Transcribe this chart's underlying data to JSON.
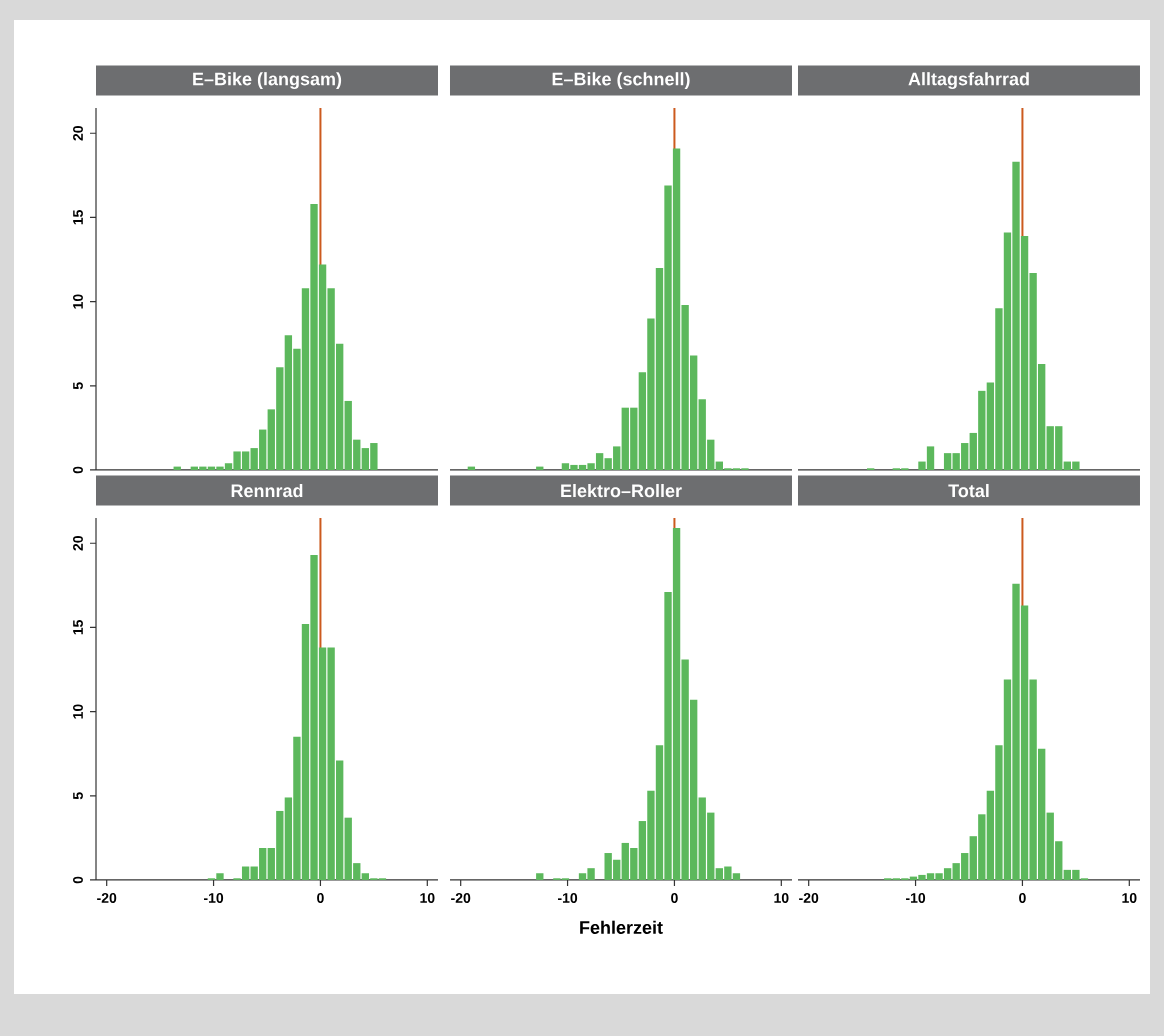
{
  "chart_data": [
    {
      "type": "histogram",
      "title": "E–Bike (langsam)",
      "color": "#5cb85c",
      "xlim": [
        -21,
        11
      ],
      "ylim": [
        0,
        21.5
      ],
      "xticks": [
        -20,
        -10,
        0,
        10
      ],
      "yticks": [
        0,
        5,
        10,
        15,
        20
      ],
      "tick_labels": "y",
      "ref_lines": [
        {
          "axis": "x",
          "value": 0,
          "color": "#cc5a1e"
        }
      ],
      "bins": [
        -13.8,
        -13,
        -12.2,
        -11.4,
        -10.6,
        -9.8,
        -9,
        -8.2,
        -7.4,
        -6.6,
        -5.8,
        -5,
        -4.2,
        -3.4,
        -2.6,
        -1.8,
        -1,
        -0.2,
        0.6,
        1.4,
        2.2,
        3,
        3.8,
        4.6,
        5.4
      ],
      "values": [
        0.2,
        0,
        0.2,
        0.2,
        0.2,
        0.2,
        0.4,
        1.1,
        1.1,
        1.3,
        2.4,
        3.6,
        6.1,
        8.0,
        7.2,
        10.8,
        15.8,
        12.2,
        10.8,
        7.5,
        4.1,
        1.8,
        1.3,
        1.6
      ]
    },
    {
      "type": "histogram",
      "title": "E–Bike (schnell)",
      "color": "#5cb85c",
      "xlim": [
        -21,
        11
      ],
      "ylim": [
        0,
        21.5
      ],
      "xticks": [
        -20,
        -10,
        0,
        10
      ],
      "yticks": [
        0,
        5,
        10,
        15,
        20
      ],
      "tick_labels": false,
      "ref_lines": [
        {
          "axis": "x",
          "value": 0,
          "color": "#cc5a1e"
        }
      ],
      "bins": [
        -19.4,
        -18.6,
        -17.8,
        -17,
        -16.2,
        -15.4,
        -14.6,
        -13.8,
        -13,
        -12.2,
        -11.4,
        -10.6,
        -9.8,
        -9,
        -8.2,
        -7.4,
        -6.6,
        -5.8,
        -5,
        -4.2,
        -3.4,
        -2.6,
        -1.8,
        -1,
        -0.2,
        0.6,
        1.4,
        2.2,
        3,
        3.8,
        4.6,
        5.4,
        6.2,
        7
      ],
      "values": [
        0.2,
        0,
        0,
        0,
        0,
        0,
        0,
        0,
        0.2,
        0,
        0,
        0.4,
        0.3,
        0.3,
        0.4,
        1.0,
        0.7,
        1.4,
        3.7,
        3.7,
        5.8,
        9.0,
        12.0,
        16.9,
        19.1,
        9.8,
        6.8,
        4.2,
        1.8,
        0.5,
        0.1,
        0.1,
        0.1
      ]
    },
    {
      "type": "histogram",
      "title": "Alltagsfahrrad",
      "color": "#5cb85c",
      "xlim": [
        -21,
        11
      ],
      "ylim": [
        0,
        21.5
      ],
      "xticks": [
        -20,
        -10,
        0,
        10
      ],
      "yticks": [
        0,
        5,
        10,
        15,
        20
      ],
      "tick_labels": false,
      "ref_lines": [
        {
          "axis": "x",
          "value": 0,
          "color": "#cc5a1e"
        }
      ],
      "bins": [
        -14.6,
        -13.8,
        -13,
        -12.2,
        -11.4,
        -10.6,
        -9.8,
        -9,
        -8.2,
        -7.4,
        -6.6,
        -5.8,
        -5,
        -4.2,
        -3.4,
        -2.6,
        -1.8,
        -1,
        -0.2,
        0.6,
        1.4,
        2.2,
        3,
        3.8,
        4.6,
        5.4
      ],
      "values": [
        0.1,
        0,
        0,
        0.1,
        0.1,
        0,
        0.5,
        1.4,
        0,
        1.0,
        1.0,
        1.6,
        2.2,
        4.7,
        5.2,
        9.6,
        14.1,
        18.3,
        13.9,
        11.7,
        6.3,
        2.6,
        2.6,
        0.5,
        0.5
      ]
    },
    {
      "type": "histogram",
      "title": "Rennrad",
      "color": "#5cb85c",
      "xlim": [
        -21,
        11
      ],
      "ylim": [
        0,
        21.5
      ],
      "xticks": [
        -20,
        -10,
        0,
        10
      ],
      "yticks": [
        0,
        5,
        10,
        15,
        20
      ],
      "ref_lines": [
        {
          "axis": "x",
          "value": 0,
          "color": "#cc5a1e"
        }
      ],
      "bins": [
        -10.6,
        -9.8,
        -9,
        -8.2,
        -7.4,
        -6.6,
        -5.8,
        -5,
        -4.2,
        -3.4,
        -2.6,
        -1.8,
        -1,
        -0.2,
        0.6,
        1.4,
        2.2,
        3,
        3.8,
        4.6,
        5.4,
        6.2
      ],
      "values": [
        0.1,
        0.4,
        0,
        0.1,
        0.8,
        0.8,
        1.9,
        1.9,
        4.1,
        4.9,
        8.5,
        15.2,
        19.3,
        13.8,
        13.8,
        7.1,
        3.7,
        1.0,
        0.4,
        0.1,
        0.1
      ]
    },
    {
      "type": "histogram",
      "title": "Elektro–Roller",
      "xlabel": "Fehlerzeit",
      "color": "#5cb85c",
      "xlim": [
        -21,
        11
      ],
      "ylim": [
        0,
        21.5
      ],
      "xticks": [
        -20,
        -10,
        0,
        10
      ],
      "yticks": [
        0,
        5,
        10,
        15,
        20
      ],
      "tick_labels": "x",
      "ref_lines": [
        {
          "axis": "x",
          "value": 0,
          "color": "#cc5a1e"
        }
      ],
      "bins": [
        -13,
        -12.2,
        -11.4,
        -10.6,
        -9.8,
        -9,
        -8.2,
        -7.4,
        -6.6,
        -5.8,
        -5,
        -4.2,
        -3.4,
        -2.6,
        -1.8,
        -1,
        -0.2,
        0.6,
        1.4,
        2.2,
        3,
        3.8,
        4.6,
        5.4,
        6.2
      ],
      "values": [
        0.4,
        0,
        0.1,
        0.1,
        0,
        0.4,
        0.7,
        0,
        1.6,
        1.2,
        2.2,
        1.9,
        3.5,
        5.3,
        8.0,
        17.1,
        20.9,
        13.1,
        10.7,
        4.9,
        4.0,
        0.7,
        0.8,
        0.4
      ]
    },
    {
      "type": "histogram",
      "title": "Total",
      "color": "#5cb85c",
      "xlim": [
        -21,
        11
      ],
      "ylim": [
        0,
        21.5
      ],
      "xticks": [
        -20,
        -10,
        0,
        10
      ],
      "yticks": [
        0,
        5,
        10,
        15,
        20
      ],
      "tick_labels": "x",
      "ref_lines": [
        {
          "axis": "x",
          "value": 0,
          "color": "#cc5a1e"
        }
      ],
      "bins": [
        -13,
        -12.2,
        -11.4,
        -10.6,
        -9.8,
        -9,
        -8.2,
        -7.4,
        -6.6,
        -5.8,
        -5,
        -4.2,
        -3.4,
        -2.6,
        -1.8,
        -1,
        -0.2,
        0.6,
        1.4,
        2.2,
        3,
        3.8,
        4.6,
        5.4,
        6.2
      ],
      "values": [
        0.1,
        0.1,
        0.1,
        0.2,
        0.3,
        0.4,
        0.4,
        0.7,
        1.0,
        1.6,
        2.6,
        3.9,
        5.3,
        8.0,
        11.9,
        17.6,
        16.3,
        11.9,
        7.8,
        4.0,
        2.3,
        0.6,
        0.6,
        0.1
      ]
    }
  ]
}
